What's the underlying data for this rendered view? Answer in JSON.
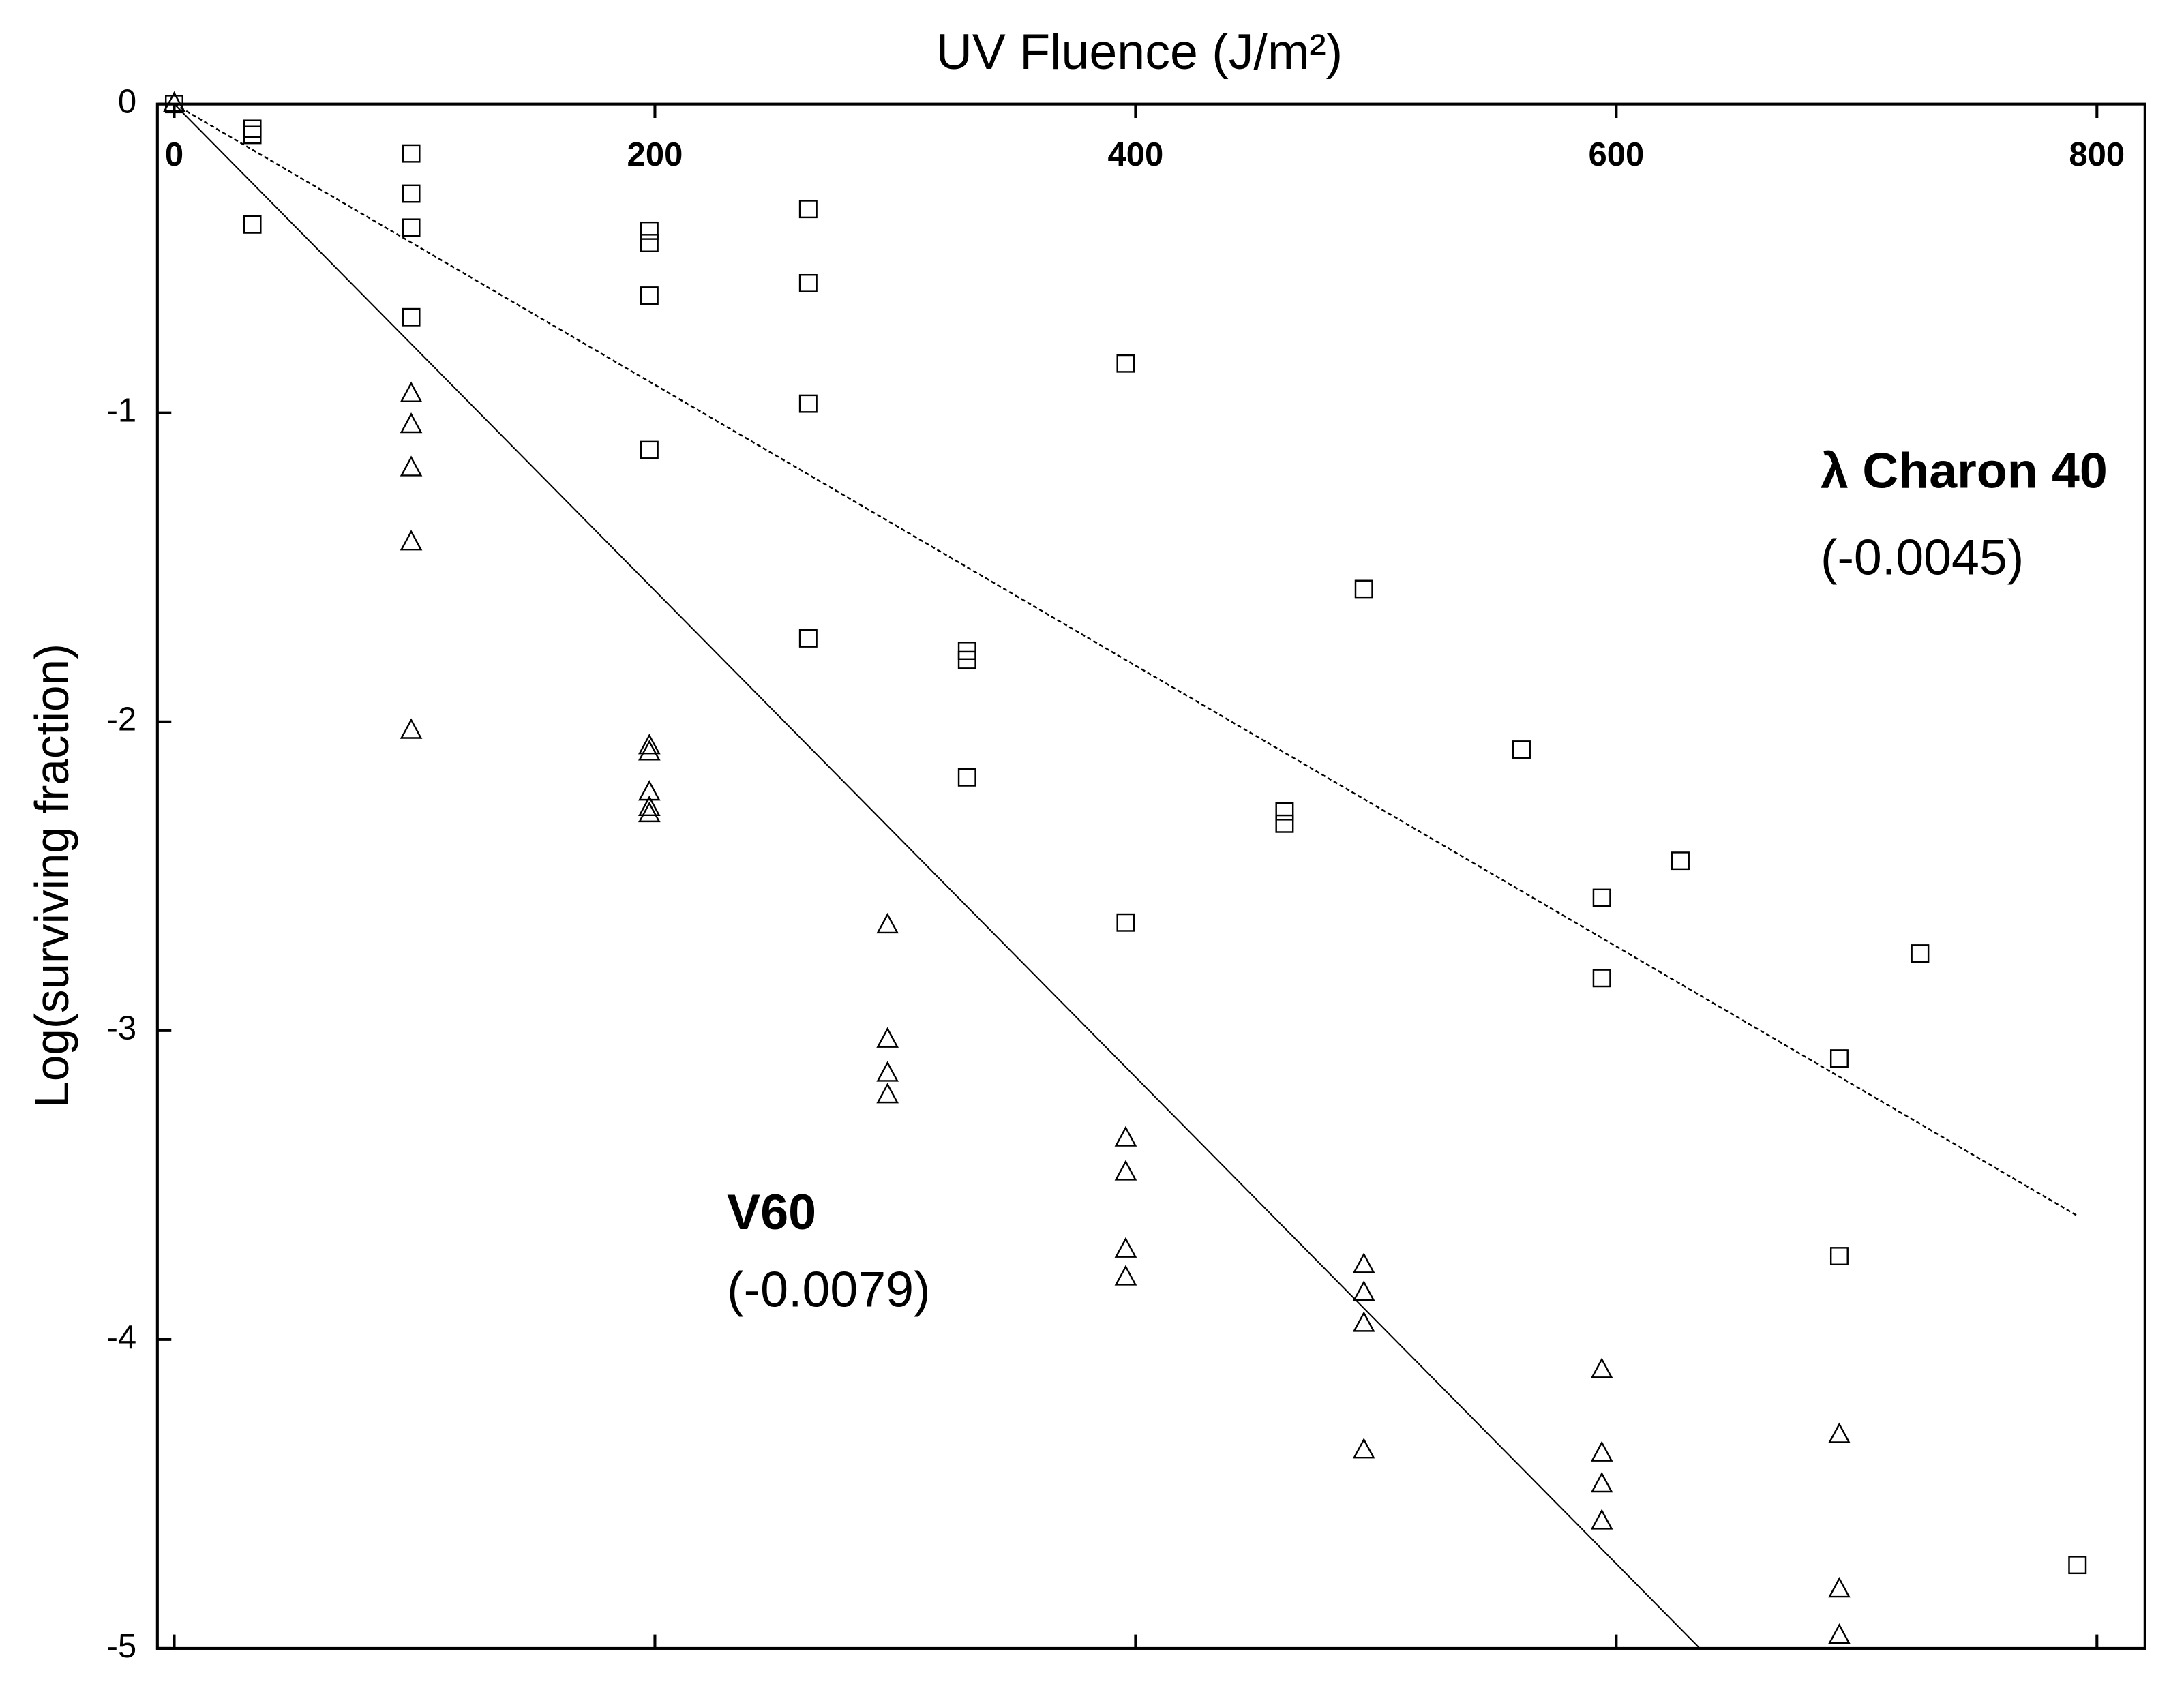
{
  "chart_data": {
    "type": "scatter",
    "title": "UV Fluence (J/m²)",
    "y_label": "Log(surviving fraction)",
    "xlim": [
      -7,
      820
    ],
    "xticks": [
      0,
      200,
      400,
      600,
      800
    ],
    "ylim": [
      -5,
      0
    ],
    "yticks": [
      -5,
      -4,
      -3,
      -2,
      -1,
      0
    ],
    "series": [
      {
        "marker": "square",
        "color": "#000000",
        "x": [
          0,
          32.5,
          32.5,
          32.5,
          98.6,
          98.6,
          98.6,
          98.6,
          197.7,
          197.7,
          197.7,
          197.7,
          263.8,
          263.8,
          263.8,
          263.8,
          329.9,
          329.9,
          329.9,
          395.9,
          395.9,
          462,
          462,
          495,
          560.6,
          594,
          594,
          626.7,
          692.8,
          692.8,
          726.4,
          791.9
        ],
        "values": [
          0,
          -0.08,
          -0.1,
          -0.39,
          -0.16,
          -0.29,
          -0.4,
          -0.69,
          -0.41,
          -0.45,
          -0.62,
          -1.12,
          -0.34,
          -0.58,
          -0.97,
          -1.73,
          -1.77,
          -1.8,
          -2.18,
          -0.84,
          -2.65,
          -2.29,
          -2.33,
          -1.57,
          -2.09,
          -2.57,
          -2.83,
          -2.45,
          -3.09,
          -3.73,
          -2.75,
          -4.73
        ]
      },
      {
        "marker": "triangle",
        "color": "#000000",
        "x": [
          0,
          98.6,
          98.6,
          98.6,
          98.6,
          98.6,
          197.7,
          197.7,
          197.7,
          197.7,
          197.7,
          296.8,
          296.8,
          296.8,
          296.8,
          395.9,
          395.9,
          395.9,
          395.9,
          495,
          495,
          495,
          495,
          594,
          594,
          594,
          594,
          692.8,
          692.8,
          692.8
        ],
        "values": [
          0,
          -0.94,
          -1.04,
          -1.18,
          -1.42,
          -2.03,
          -2.08,
          -2.1,
          -2.23,
          -2.28,
          -2.3,
          -2.66,
          -3.03,
          -3.14,
          -3.21,
          -3.35,
          -3.46,
          -3.71,
          -3.8,
          -3.76,
          -3.85,
          -3.95,
          -4.36,
          -4.1,
          -4.37,
          -4.47,
          -4.59,
          -4.31,
          -4.81,
          -4.96
        ]
      }
    ],
    "fits": [
      {
        "dashed": true,
        "color": "#000000",
        "x": [
          0,
          792
        ],
        "values": [
          0,
          -3.6
        ]
      },
      {
        "dashed": false,
        "color": "#000000",
        "x": [
          0,
          634.8
        ],
        "values": [
          0,
          -5
        ]
      }
    ],
    "annotations": [
      {
        "text": "λ Charon 40",
        "bold": true,
        "x": 685,
        "y": -1.2
      },
      {
        "text": "(-0.0045)",
        "bold": false,
        "x": 685,
        "y": -1.48
      },
      {
        "text": "V60",
        "bold": true,
        "x": 230,
        "y": -3.6
      },
      {
        "text": "(-0.0079)",
        "bold": false,
        "x": 230,
        "y": -3.85
      }
    ]
  }
}
